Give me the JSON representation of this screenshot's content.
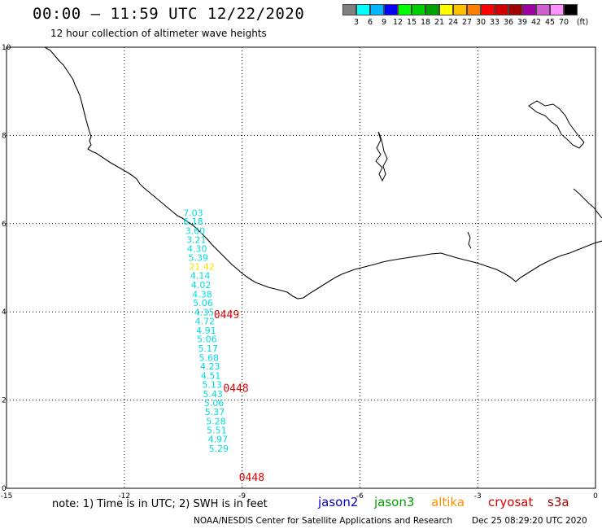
{
  "header": {
    "title": "00:00 – 11:59 UTC 12/22/2020",
    "subtitle": "12 hour collection of altimeter wave heights"
  },
  "legend": {
    "unit": "(ft)",
    "colors": [
      "#808080",
      "#00ffff",
      "#00b4ff",
      "#0000ff",
      "#00ff00",
      "#00d000",
      "#00a000",
      "#ffff00",
      "#ffc000",
      "#ff8000",
      "#ff0000",
      "#d00000",
      "#a00000",
      "#a000a0",
      "#d060d0",
      "#ff90ff",
      "#000000"
    ],
    "ticks": [
      "3",
      "6",
      "9",
      "12",
      "15",
      "18",
      "21",
      "24",
      "27",
      "30",
      "33",
      "36",
      "39",
      "42",
      "45",
      "70"
    ]
  },
  "map": {
    "x_ticks": [
      "-15",
      "-12",
      "-9",
      "-6",
      "-3",
      "0"
    ],
    "y_ticks": [
      "0",
      "2",
      "4",
      "6",
      "8",
      "10"
    ]
  },
  "chart_data": {
    "type": "scatter",
    "xlim": [
      -15,
      0
    ],
    "ylim": [
      0,
      10
    ],
    "grid": true,
    "points": [
      {
        "lon": -10.5,
        "lat": 6.17,
        "value": "7.03",
        "color": "#00dcdc"
      },
      {
        "lon": -10.5,
        "lat": 5.98,
        "value": "6.18",
        "color": "#00dcdc"
      },
      {
        "lon": -10.45,
        "lat": 5.77,
        "value": "3.60",
        "color": "#00dcdc"
      },
      {
        "lon": -10.42,
        "lat": 5.56,
        "value": "3.21",
        "color": "#00dcdc"
      },
      {
        "lon": -10.4,
        "lat": 5.36,
        "value": "4.30",
        "color": "#00dcdc"
      },
      {
        "lon": -10.37,
        "lat": 5.16,
        "value": "5.39",
        "color": "#00dcdc"
      },
      {
        "lon": -10.35,
        "lat": 4.95,
        "value": "21.42",
        "color": "#ffe000"
      },
      {
        "lon": -10.32,
        "lat": 4.75,
        "value": "4.14",
        "color": "#00dcdc"
      },
      {
        "lon": -10.3,
        "lat": 4.54,
        "value": "4.02",
        "color": "#00dcdc"
      },
      {
        "lon": -10.27,
        "lat": 4.33,
        "value": "4.38",
        "color": "#00dcdc"
      },
      {
        "lon": -10.25,
        "lat": 4.13,
        "value": "5.06",
        "color": "#00dcdc"
      },
      {
        "lon": -10.22,
        "lat": 3.92,
        "value": "4.35",
        "color": "#00dcdc"
      },
      {
        "lon": -10.2,
        "lat": 3.72,
        "value": "4.72",
        "color": "#00dcdc"
      },
      {
        "lon": -10.17,
        "lat": 3.51,
        "value": "4.91",
        "color": "#00dcdc"
      },
      {
        "lon": -10.15,
        "lat": 3.31,
        "value": "5.06",
        "color": "#00dcdc"
      },
      {
        "lon": -10.12,
        "lat": 3.1,
        "value": "5.17",
        "color": "#00dcdc"
      },
      {
        "lon": -10.1,
        "lat": 2.89,
        "value": "5.68",
        "color": "#00dcdc"
      },
      {
        "lon": -10.07,
        "lat": 2.69,
        "value": "4.23",
        "color": "#00dcdc"
      },
      {
        "lon": -10.05,
        "lat": 2.48,
        "value": "4.51",
        "color": "#00dcdc"
      },
      {
        "lon": -10.02,
        "lat": 2.28,
        "value": "5.13",
        "color": "#00dcdc"
      },
      {
        "lon": -10.0,
        "lat": 2.07,
        "value": "5.43",
        "color": "#00dcdc"
      },
      {
        "lon": -9.97,
        "lat": 1.86,
        "value": "5.06",
        "color": "#00dcdc"
      },
      {
        "lon": -9.95,
        "lat": 1.66,
        "value": "5.37",
        "color": "#00dcdc"
      },
      {
        "lon": -9.92,
        "lat": 1.45,
        "value": "5.28",
        "color": "#00dcdc"
      },
      {
        "lon": -9.9,
        "lat": 1.25,
        "value": "5.51",
        "color": "#00dcdc"
      },
      {
        "lon": -9.87,
        "lat": 1.04,
        "value": "4.97",
        "color": "#00dcdc"
      },
      {
        "lon": -9.85,
        "lat": 0.83,
        "value": "5.29",
        "color": "#00dcdc"
      }
    ],
    "time_labels": [
      {
        "lon": -9.72,
        "lat": 3.86,
        "text": "0449"
      },
      {
        "lon": -9.48,
        "lat": 2.19,
        "text": "0448"
      },
      {
        "lon": -9.08,
        "lat": 0.17,
        "text": "0448"
      }
    ]
  },
  "footer": {
    "note": "note: 1) Time is in UTC; 2) SWH is in feet",
    "satellites": [
      {
        "name": "jason2",
        "color": "#0000cc"
      },
      {
        "name": "jason3",
        "color": "#00a000"
      },
      {
        "name": "altika",
        "color": "#ff9000"
      },
      {
        "name": "cryosat",
        "color": "#dd0000"
      },
      {
        "name": "s3a",
        "color": "#990000"
      }
    ],
    "credit": "NOAA/NESDIS Center for Satellite Applications and Research",
    "stamp": "Dec 25 08:29:20 UTC 2020"
  }
}
